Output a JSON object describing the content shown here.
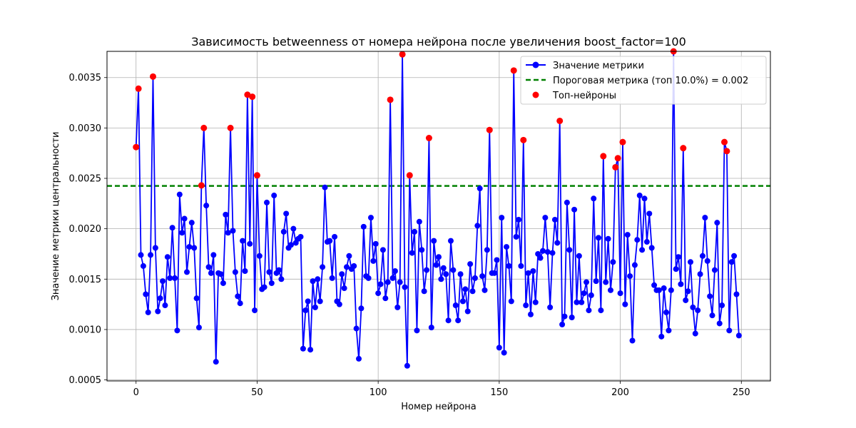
{
  "chart_data": {
    "type": "line",
    "title": "Зависимость betweenness от номера нейрона после увеличения boost_factor=100",
    "xlabel": "Номер нейрона",
    "ylabel": "Значение метрики центральности",
    "xlim": [
      -12,
      262
    ],
    "ylim": [
      0.00049,
      0.00376
    ],
    "xticks": [
      0,
      50,
      100,
      150,
      200,
      250
    ],
    "yticks": [
      0.0005,
      0.001,
      0.0015,
      0.002,
      0.0025,
      0.003,
      0.0035
    ],
    "ytick_labels": [
      "0.0005",
      "0.0010",
      "0.0015",
      "0.0020",
      "0.0025",
      "0.0030",
      "0.0035"
    ],
    "grid": true,
    "legend_position": "top-right",
    "series": [
      {
        "name": "Значение метрики",
        "color": "#0000ff",
        "marker": "circle",
        "x_start": 0,
        "values": [
          0.00281,
          0.00339,
          0.00174,
          0.00163,
          0.00135,
          0.00117,
          0.00174,
          0.00351,
          0.00181,
          0.00118,
          0.00131,
          0.00148,
          0.00124,
          0.00172,
          0.00151,
          0.00201,
          0.00151,
          0.00099,
          0.00234,
          0.00196,
          0.0021,
          0.00157,
          0.00182,
          0.00206,
          0.00181,
          0.00131,
          0.00102,
          0.00243,
          0.003,
          0.00223,
          0.00162,
          0.00156,
          0.00174,
          0.00068,
          0.00156,
          0.00155,
          0.00146,
          0.00214,
          0.00196,
          0.003,
          0.00198,
          0.00157,
          0.00133,
          0.00126,
          0.00188,
          0.00158,
          0.00333,
          0.00185,
          0.00331,
          0.00119,
          0.00253,
          0.00173,
          0.0014,
          0.00142,
          0.00226,
          0.00157,
          0.00146,
          0.00233,
          0.00156,
          0.00159,
          0.0015,
          0.00197,
          0.00215,
          0.00181,
          0.00184,
          0.002,
          0.00186,
          0.0019,
          0.00192,
          0.00081,
          0.00119,
          0.00128,
          0.0008,
          0.00148,
          0.00122,
          0.0015,
          0.00128,
          0.00162,
          0.00241,
          0.00187,
          0.00188,
          0.00151,
          0.00192,
          0.00128,
          0.00125,
          0.00155,
          0.00141,
          0.00162,
          0.00173,
          0.0016,
          0.00163,
          0.00101,
          0.00071,
          0.00121,
          0.00202,
          0.00153,
          0.00151,
          0.00211,
          0.00168,
          0.00185,
          0.00136,
          0.00145,
          0.00179,
          0.00131,
          0.00147,
          0.00328,
          0.00151,
          0.00158,
          0.00122,
          0.00147,
          0.00373,
          0.00142,
          0.00064,
          0.00253,
          0.00176,
          0.00197,
          0.00099,
          0.00207,
          0.00179,
          0.00138,
          0.00159,
          0.0029,
          0.00102,
          0.00188,
          0.00164,
          0.00172,
          0.0015,
          0.00161,
          0.00155,
          0.00109,
          0.00188,
          0.00159,
          0.00124,
          0.00109,
          0.00155,
          0.00128,
          0.0014,
          0.00118,
          0.00165,
          0.00138,
          0.00151,
          0.00203,
          0.0024,
          0.00153,
          0.00139,
          0.00179,
          0.00298,
          0.00156,
          0.00156,
          0.00169,
          0.00082,
          0.00211,
          0.00077,
          0.00182,
          0.00163,
          0.00128,
          0.00357,
          0.00192,
          0.00209,
          0.00163,
          0.00288,
          0.00124,
          0.00156,
          0.00115,
          0.00158,
          0.00127,
          0.00175,
          0.00171,
          0.00178,
          0.00211,
          0.00177,
          0.00122,
          0.00176,
          0.00209,
          0.00186,
          0.00307,
          0.00105,
          0.00113,
          0.00226,
          0.00179,
          0.00112,
          0.00219,
          0.00127,
          0.00173,
          0.00127,
          0.00136,
          0.00147,
          0.00119,
          0.00134,
          0.0023,
          0.00148,
          0.00191,
          0.00119,
          0.00272,
          0.00147,
          0.0019,
          0.00139,
          0.00167,
          0.00261,
          0.0027,
          0.00136,
          0.00286,
          0.00125,
          0.00194,
          0.00153,
          0.00089,
          0.00164,
          0.00189,
          0.00233,
          0.00179,
          0.0023,
          0.00187,
          0.00215,
          0.00181,
          0.00144,
          0.00139,
          0.00139,
          0.00093,
          0.00141,
          0.00117,
          0.00099,
          0.00139,
          0.00376,
          0.0016,
          0.00172,
          0.00145,
          0.0028,
          0.00129,
          0.00138,
          0.00167,
          0.00122,
          0.00096,
          0.00119,
          0.00155,
          0.00173,
          0.00211,
          0.00168,
          0.00133,
          0.00114,
          0.00159,
          0.00206,
          0.00106,
          0.00124,
          0.00286,
          0.00277,
          0.00099,
          0.00167,
          0.00173,
          0.00135,
          0.00094
        ]
      },
      {
        "name": "Пороговая метрика (топ 10.0%) = 0.002",
        "color": "#008000",
        "style": "dashed",
        "value": 0.002425
      },
      {
        "name": "Топ-нейроны",
        "color": "#ff0000",
        "marker": "circle",
        "x": [
          0,
          1,
          7,
          27,
          28,
          39,
          46,
          48,
          50,
          105,
          110,
          113,
          121,
          146,
          156,
          160,
          175,
          193,
          198,
          199,
          201,
          222,
          226,
          243,
          244
        ],
        "values": [
          0.00281,
          0.00339,
          0.00351,
          0.00243,
          0.003,
          0.003,
          0.00333,
          0.00331,
          0.00253,
          0.00328,
          0.00373,
          0.00253,
          0.0029,
          0.00298,
          0.00357,
          0.00288,
          0.00307,
          0.00272,
          0.00261,
          0.0027,
          0.00286,
          0.00376,
          0.0028,
          0.00286,
          0.00277
        ]
      }
    ]
  }
}
